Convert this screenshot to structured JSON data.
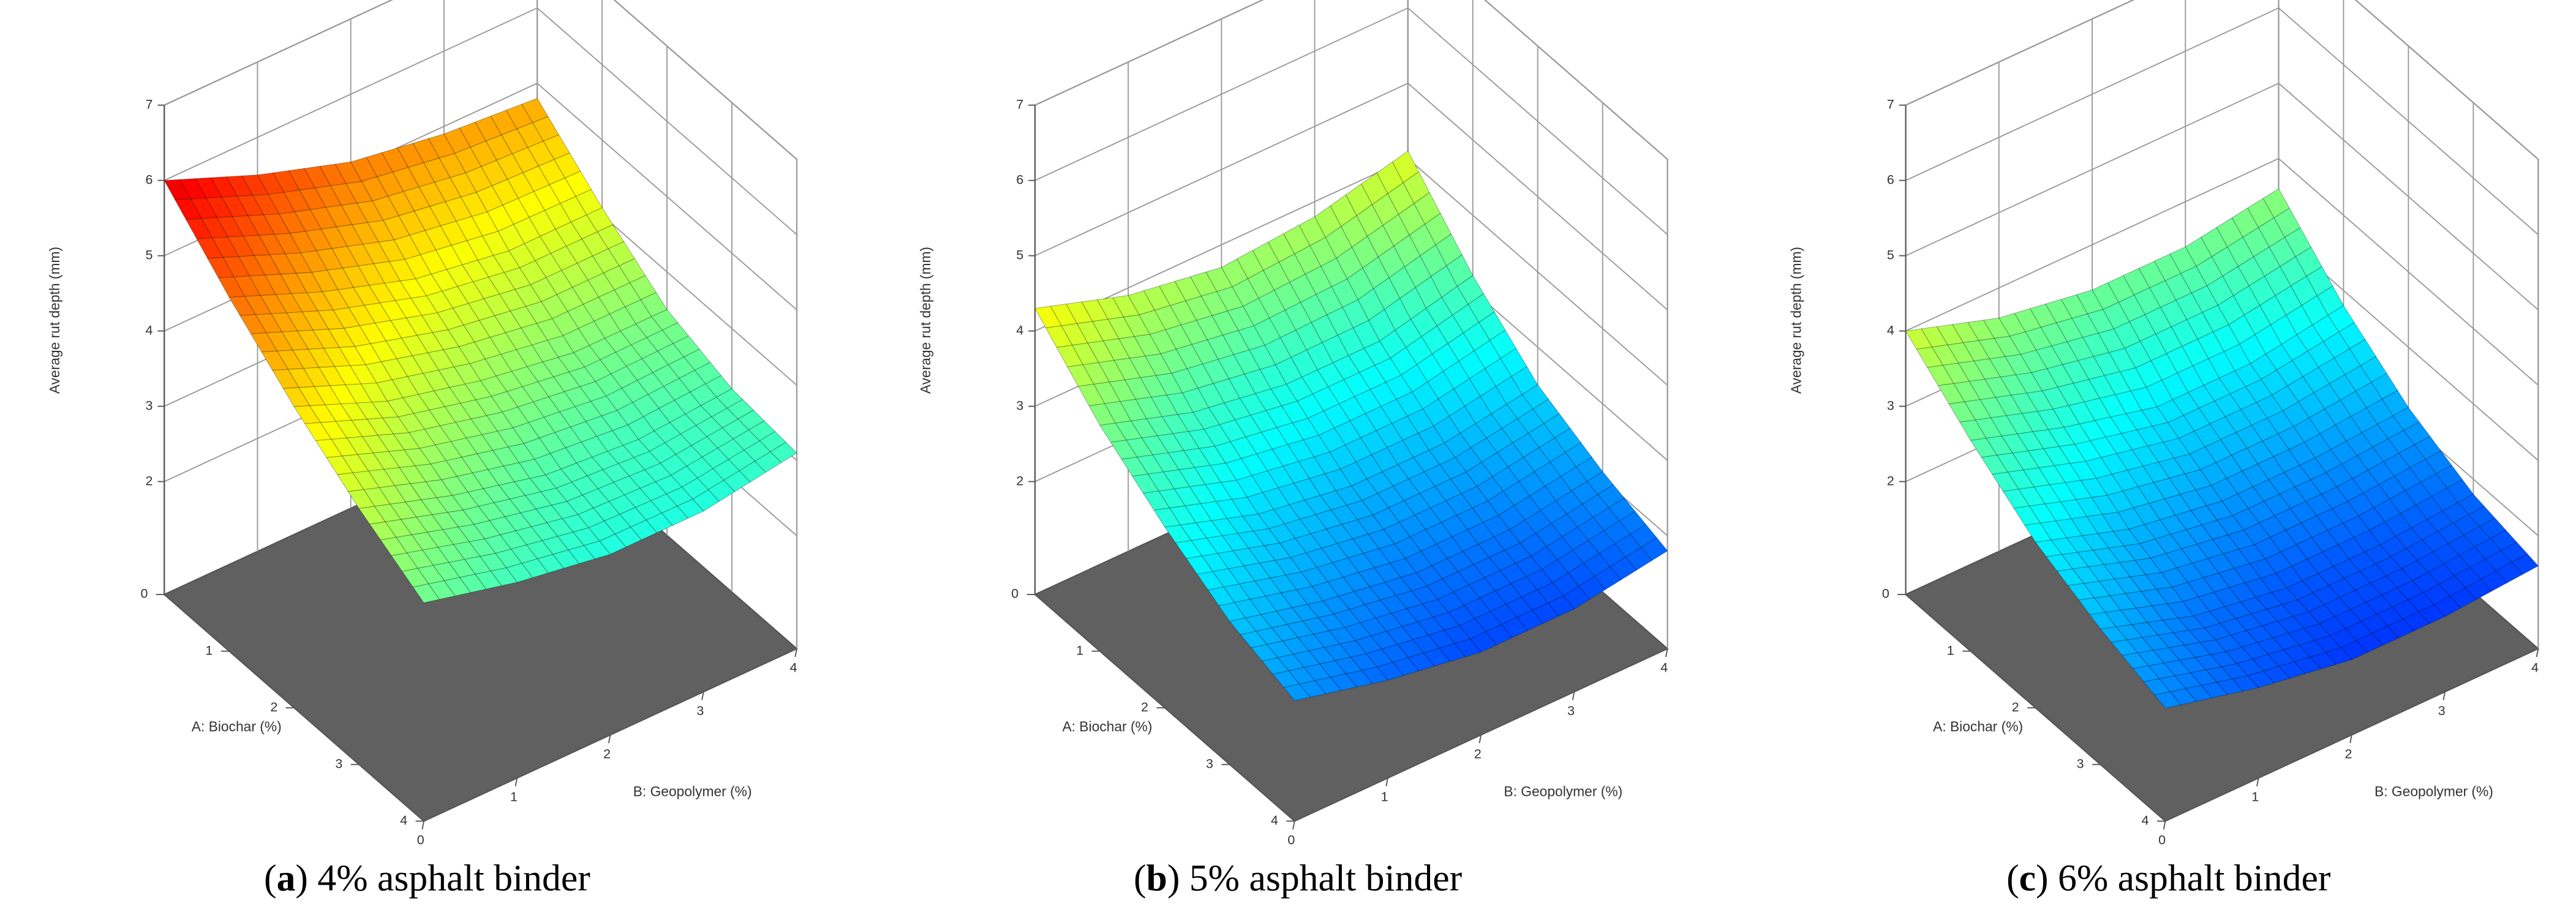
{
  "chart_data": [
    {
      "type": "surface",
      "panel": "a",
      "title": "4% asphalt binder",
      "xlabel": "A: Biochar (%)",
      "ylabel": "B: Geopolymer (%)",
      "zlabel": "Average rut depth (mm)",
      "x": [
        0,
        1,
        2,
        3,
        4
      ],
      "y": [
        0,
        1,
        2,
        3,
        4
      ],
      "z": [
        [
          6.0,
          5.5,
          5.1,
          4.9,
          4.8
        ],
        [
          5.2,
          4.7,
          4.3,
          4.1,
          4.1
        ],
        [
          4.5,
          4.0,
          3.7,
          3.5,
          3.5
        ],
        [
          3.9,
          3.5,
          3.2,
          3.1,
          3.2
        ],
        [
          3.4,
          3.1,
          2.9,
          2.9,
          3.1
        ]
      ],
      "xlim": [
        0,
        4
      ],
      "ylim": [
        0,
        4
      ],
      "zlim": [
        0.5,
        7
      ],
      "xticks": [
        0,
        1,
        2,
        3,
        4
      ],
      "yticks": [
        0,
        1,
        2,
        3,
        4
      ],
      "zticks": [
        2,
        3,
        4,
        5,
        6,
        7
      ]
    },
    {
      "type": "surface",
      "panel": "b",
      "title": "5% asphalt binder",
      "xlabel": "A: Biochar (%)",
      "ylabel": "B: Geopolymer (%)",
      "zlabel": "Average rut depth (mm)",
      "x": [
        0,
        1,
        2,
        3,
        4
      ],
      "y": [
        0,
        1,
        2,
        3,
        4
      ],
      "z": [
        [
          4.3,
          3.9,
          3.7,
          3.8,
          4.1
        ],
        [
          3.5,
          3.1,
          2.9,
          2.9,
          3.2
        ],
        [
          2.9,
          2.5,
          2.3,
          2.3,
          2.5
        ],
        [
          2.4,
          2.1,
          1.9,
          1.9,
          2.1
        ],
        [
          2.1,
          1.8,
          1.6,
          1.6,
          1.8
        ]
      ],
      "xlim": [
        0,
        4
      ],
      "ylim": [
        0,
        4
      ],
      "zlim": [
        0.5,
        7
      ],
      "xticks": [
        0,
        1,
        2,
        3,
        4
      ],
      "yticks": [
        0,
        1,
        2,
        3,
        4
      ],
      "zticks": [
        2,
        3,
        4,
        5,
        6,
        7
      ]
    },
    {
      "type": "surface",
      "panel": "c",
      "title": "6% asphalt binder",
      "xlabel": "A: Biochar (%)",
      "ylabel": "B: Geopolymer (%)",
      "zlabel": "Average rut depth (mm)",
      "x": [
        0,
        1,
        2,
        3,
        4
      ],
      "y": [
        0,
        1,
        2,
        3,
        4
      ],
      "z": [
        [
          4.0,
          3.6,
          3.4,
          3.4,
          3.6
        ],
        [
          3.3,
          2.9,
          2.6,
          2.6,
          2.8
        ],
        [
          2.7,
          2.3,
          2.1,
          2.1,
          2.2
        ],
        [
          2.3,
          1.9,
          1.7,
          1.7,
          1.8
        ],
        [
          2.0,
          1.7,
          1.5,
          1.5,
          1.6
        ]
      ],
      "xlim": [
        0,
        4
      ],
      "ylim": [
        0,
        4
      ],
      "zlim": [
        0.5,
        7
      ],
      "xticks": [
        0,
        1,
        2,
        3,
        4
      ],
      "yticks": [
        0,
        1,
        2,
        3,
        4
      ],
      "zticks": [
        2,
        3,
        4,
        5,
        6,
        7
      ]
    }
  ]
}
